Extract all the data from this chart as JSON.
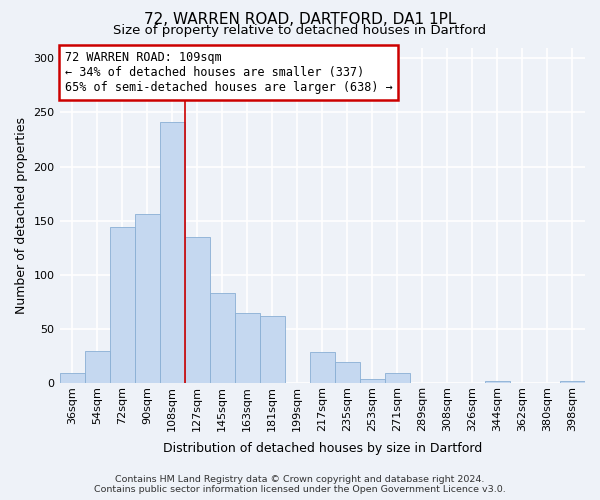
{
  "title": "72, WARREN ROAD, DARTFORD, DA1 1PL",
  "subtitle": "Size of property relative to detached houses in Dartford",
  "xlabel": "Distribution of detached houses by size in Dartford",
  "ylabel": "Number of detached properties",
  "bar_labels": [
    "36sqm",
    "54sqm",
    "72sqm",
    "90sqm",
    "108sqm",
    "127sqm",
    "145sqm",
    "163sqm",
    "181sqm",
    "199sqm",
    "217sqm",
    "235sqm",
    "253sqm",
    "271sqm",
    "289sqm",
    "308sqm",
    "326sqm",
    "344sqm",
    "362sqm",
    "380sqm",
    "398sqm"
  ],
  "bar_values": [
    9,
    30,
    144,
    156,
    241,
    135,
    83,
    65,
    62,
    0,
    29,
    19,
    4,
    9,
    0,
    0,
    0,
    2,
    0,
    0,
    2
  ],
  "bar_color": "#c5d8f0",
  "bar_edge_color": "#89afd4",
  "annotation_title": "72 WARREN ROAD: 109sqm",
  "annotation_line1": "← 34% of detached houses are smaller (337)",
  "annotation_line2": "65% of semi-detached houses are larger (638) →",
  "annotation_box_facecolor": "#ffffff",
  "annotation_box_edgecolor": "#cc0000",
  "vline_color": "#cc0000",
  "vline_x_index": 4,
  "ylim": [
    0,
    310
  ],
  "yticks": [
    0,
    50,
    100,
    150,
    200,
    250,
    300
  ],
  "footer_line1": "Contains HM Land Registry data © Crown copyright and database right 2024.",
  "footer_line2": "Contains public sector information licensed under the Open Government Licence v3.0.",
  "bg_color": "#eef2f8",
  "grid_color": "#ffffff",
  "title_fontsize": 11,
  "subtitle_fontsize": 9.5,
  "ylabel_fontsize": 9,
  "xlabel_fontsize": 9,
  "tick_fontsize": 8,
  "footer_fontsize": 6.8
}
